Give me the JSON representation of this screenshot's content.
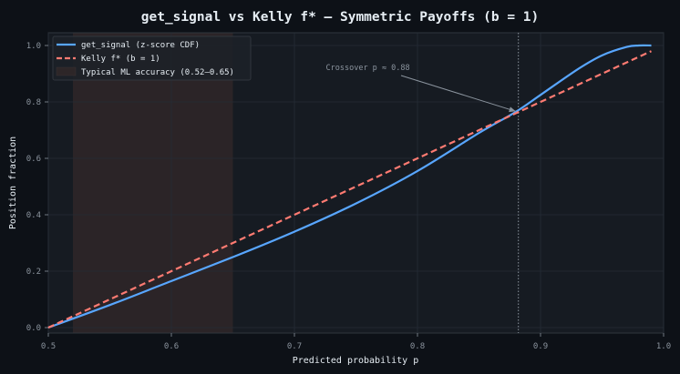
{
  "chart_data": {
    "type": "line",
    "title": "get_signal vs Kelly f* — Symmetric Payoffs (b = 1)",
    "xlabel": "Predicted probability p",
    "ylabel": "Position fraction",
    "xlim": [
      0.5,
      1.0
    ],
    "ylim": [
      -0.02,
      1.05
    ],
    "xticks": [
      "0.5",
      "0.6",
      "0.7",
      "0.8",
      "0.9",
      "1.0"
    ],
    "yticks": [
      "0.0",
      "0.2",
      "0.4",
      "0.6",
      "0.8",
      "1.0"
    ],
    "grid": true,
    "legend_position": "upper left",
    "x": [
      0.5,
      0.55,
      0.6,
      0.65,
      0.7,
      0.75,
      0.8,
      0.85,
      0.88,
      0.9,
      0.93,
      0.95,
      0.97,
      0.98,
      0.99
    ],
    "series": [
      {
        "name": "get_signal (z-score CDF)",
        "style": "solid",
        "color": "#58a6ff",
        "values": [
          0.0,
          0.08,
          0.165,
          0.25,
          0.34,
          0.44,
          0.555,
          0.69,
          0.765,
          0.825,
          0.915,
          0.965,
          0.995,
          1.0,
          1.0
        ]
      },
      {
        "name": "Kelly f* (b = 1)",
        "style": "dashed",
        "color": "#ff7b72",
        "values": [
          0.0,
          0.1,
          0.2,
          0.3,
          0.4,
          0.5,
          0.6,
          0.7,
          0.76,
          0.8,
          0.86,
          0.9,
          0.94,
          0.96,
          0.98
        ]
      }
    ],
    "shaded_region": {
      "label": "Typical ML accuracy (0.52–0.65)",
      "x_start": 0.52,
      "x_end": 0.65,
      "color": "#2d2628"
    },
    "vline": {
      "x": 0.882,
      "style": "dotted",
      "color": "#8b949e"
    },
    "annotations": [
      {
        "text": "Crossover p ≈ 0.88",
        "text_x": 0.73,
        "text_y": 0.92,
        "arrow_to_x": 0.882,
        "arrow_to_y": 0.77
      }
    ]
  },
  "colors": {
    "page_bg": "#0d1117",
    "plot_bg": "#161b22",
    "grid": "#262c36",
    "spine": "#30363d",
    "text": "#e6edf3",
    "muted": "#8b949e"
  }
}
